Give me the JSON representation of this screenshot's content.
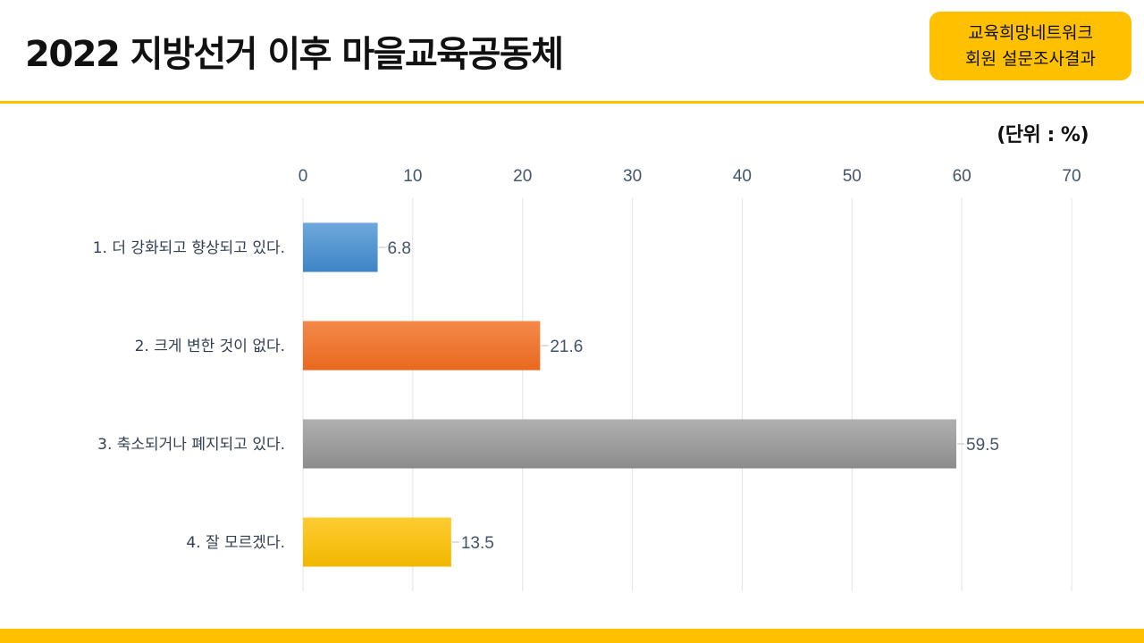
{
  "header": {
    "title": "2022 지방선거 이후 마을교육공동체",
    "badge_line1": "교육희망네트워크",
    "badge_line2": "회원 설문조사결과"
  },
  "unit_label": "(단위 :  %)",
  "colors": {
    "accent": "#ffc000",
    "axis_text": "#44546a",
    "gridline": "#e3e3e3"
  },
  "chart_data": {
    "type": "bar",
    "orientation": "horizontal",
    "categories": [
      "1. 더 강화되고 향상되고 있다.",
      "2. 크게 변한 것이 없다.",
      "3. 축소되거나 폐지되고 있다.",
      "4. 잘 모르겠다."
    ],
    "values": [
      6.8,
      21.6,
      59.5,
      13.5
    ],
    "data_labels": [
      "6.8",
      "21.6",
      "59.5",
      "13.5"
    ],
    "bar_colors": [
      [
        "#6fa8dc",
        "#3d85c6"
      ],
      [
        "#f4894a",
        "#e8691e"
      ],
      [
        "#b0b0b0",
        "#8c8c8c"
      ],
      [
        "#ffcc33",
        "#f0b800"
      ]
    ],
    "xlim": [
      0,
      70
    ],
    "xticks": [
      0,
      10,
      20,
      30,
      40,
      50,
      60,
      70
    ],
    "grid": true,
    "axis_position": "top",
    "legend": "none"
  }
}
